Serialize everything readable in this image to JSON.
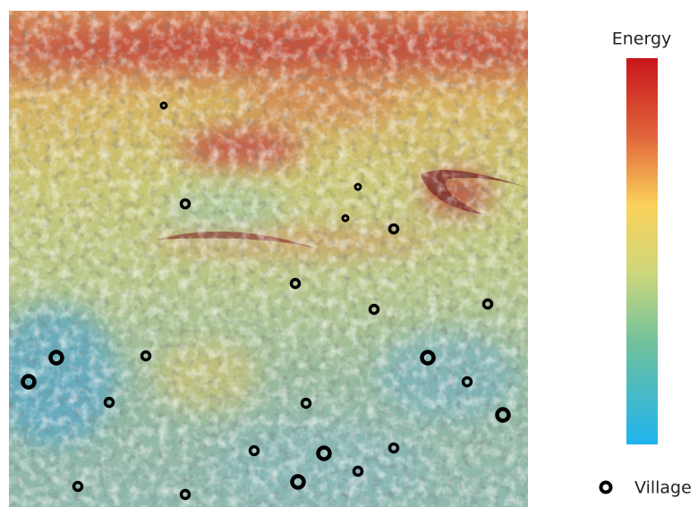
{
  "legend": {
    "title": "Energy",
    "marker_label": "Village"
  }
}
